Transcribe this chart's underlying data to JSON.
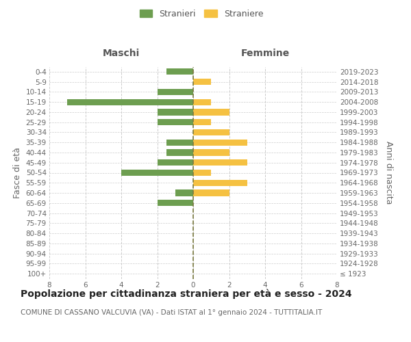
{
  "age_groups": [
    "100+",
    "95-99",
    "90-94",
    "85-89",
    "80-84",
    "75-79",
    "70-74",
    "65-69",
    "60-64",
    "55-59",
    "50-54",
    "45-49",
    "40-44",
    "35-39",
    "30-34",
    "25-29",
    "20-24",
    "15-19",
    "10-14",
    "5-9",
    "0-4"
  ],
  "birth_years": [
    "≤ 1923",
    "1924-1928",
    "1929-1933",
    "1934-1938",
    "1939-1943",
    "1944-1948",
    "1949-1953",
    "1954-1958",
    "1959-1963",
    "1964-1968",
    "1969-1973",
    "1974-1978",
    "1979-1983",
    "1984-1988",
    "1989-1993",
    "1994-1998",
    "1999-2003",
    "2004-2008",
    "2009-2013",
    "2014-2018",
    "2019-2023"
  ],
  "males": [
    0,
    0,
    0,
    0,
    0,
    0,
    0,
    2,
    1,
    0,
    4,
    2,
    1.5,
    1.5,
    0,
    2,
    2,
    7,
    2,
    0,
    1.5
  ],
  "females": [
    0,
    0,
    0,
    0,
    0,
    0,
    0,
    0,
    2,
    3,
    1,
    3,
    2,
    3,
    2,
    1,
    2,
    1,
    0,
    1,
    0
  ],
  "male_color": "#6d9e50",
  "female_color": "#f5c142",
  "center_line_color": "#7a7a40",
  "grid_color": "#cccccc",
  "title": "Popolazione per cittadinanza straniera per età e sesso - 2024",
  "subtitle": "COMUNE DI CASSANO VALCUVIA (VA) - Dati ISTAT al 1° gennaio 2024 - TUTTITALIA.IT",
  "ylabel_left": "Fasce di età",
  "ylabel_right": "Anni di nascita",
  "xlabel_left": "Maschi",
  "xlabel_right": "Femmine",
  "legend_males": "Stranieri",
  "legend_females": "Straniere",
  "xlim": 8,
  "background_color": "#ffffff",
  "title_fontsize": 10,
  "subtitle_fontsize": 7.5,
  "axis_label_fontsize": 9,
  "tick_fontsize": 7.5,
  "header_fontsize": 10
}
